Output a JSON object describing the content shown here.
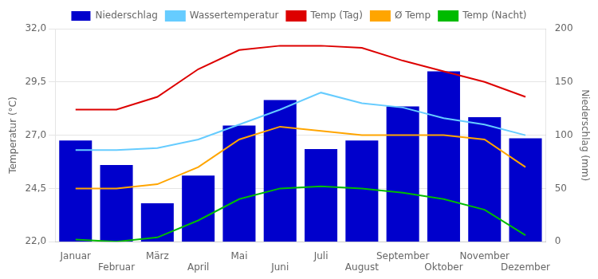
{
  "chart_data": {
    "type": "bar",
    "categories": [
      "Januar",
      "Februar",
      "März",
      "April",
      "Mai",
      "Juni",
      "Juli",
      "August",
      "September",
      "Oktober",
      "November",
      "Dezember"
    ],
    "series": [
      {
        "name": "Niederschlag",
        "type": "bar",
        "axis": "y2",
        "color": "#0000CC",
        "values": [
          95,
          72,
          36,
          62,
          109,
          133,
          87,
          95,
          127,
          160,
          117,
          97
        ]
      },
      {
        "name": "Wassertemperatur",
        "type": "line",
        "color": "#66CCFF",
        "values": [
          26.3,
          26.3,
          26.4,
          26.8,
          27.5,
          28.2,
          29.0,
          28.5,
          28.3,
          27.8,
          27.5,
          27.0
        ]
      },
      {
        "name": "Temp (Tag)",
        "type": "line",
        "color": "#DD0000",
        "values": [
          28.2,
          28.2,
          28.8,
          30.1,
          31.0,
          31.2,
          31.2,
          31.1,
          30.5,
          30.0,
          29.5,
          28.8
        ]
      },
      {
        "name": "Ø Temp",
        "type": "line",
        "color": "#FFA500",
        "values": [
          24.5,
          24.5,
          24.7,
          25.5,
          26.8,
          27.4,
          27.2,
          27.0,
          27.0,
          27.0,
          26.8,
          25.5
        ]
      },
      {
        "name": "Temp (Nacht)",
        "type": "line",
        "color": "#00BB00",
        "values": [
          22.1,
          22.0,
          22.2,
          23.0,
          24.0,
          24.5,
          24.6,
          24.5,
          24.3,
          24.0,
          23.5,
          22.3
        ]
      }
    ],
    "ylabel": "Temperatur (°C)",
    "y2label": "Niederschlag (mm)",
    "ylim": [
      22.0,
      32.0
    ],
    "yticks": [
      {
        "value": 22.0,
        "label": "22,0"
      },
      {
        "value": 24.5,
        "label": "24,5"
      },
      {
        "value": 27.0,
        "label": "27,0"
      },
      {
        "value": 29.5,
        "label": "29,5"
      },
      {
        "value": 32.0,
        "label": "32,0"
      }
    ],
    "y2lim": [
      0,
      200
    ],
    "y2ticks": [
      0,
      50,
      100,
      150,
      200
    ],
    "grid": true,
    "legend": "top"
  }
}
